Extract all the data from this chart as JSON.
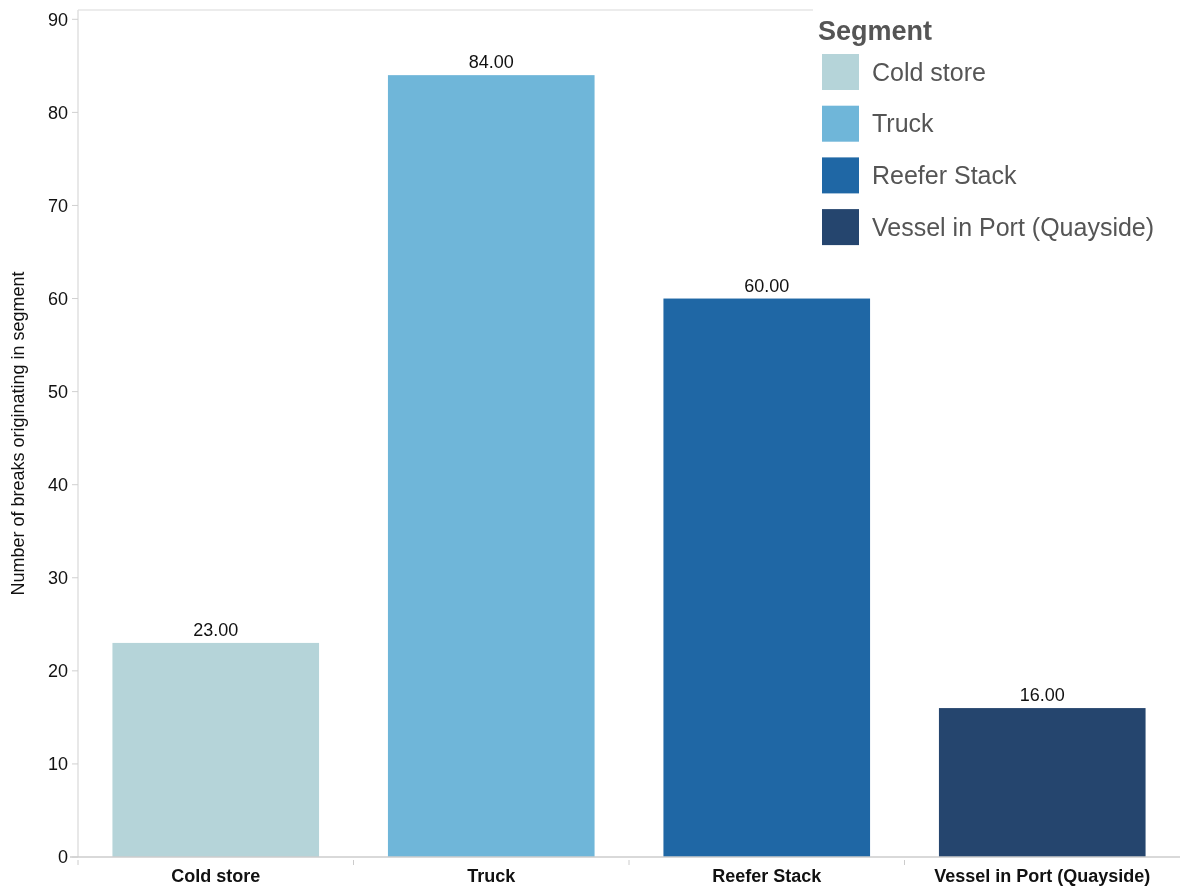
{
  "chart_data": {
    "type": "bar",
    "categories": [
      "Cold store",
      "Truck",
      "Reefer Stack",
      "Vessel in Port (Quayside)"
    ],
    "series": [
      {
        "name": "Cold store",
        "color": "#b5d4d9",
        "values": [
          23,
          null,
          null,
          null
        ],
        "value_labels": [
          "23.00",
          null,
          null,
          null
        ]
      },
      {
        "name": "Truck",
        "color": "#6fb6d9",
        "values": [
          null,
          84,
          null,
          null
        ],
        "value_labels": [
          null,
          "84.00",
          null,
          null
        ]
      },
      {
        "name": "Reefer Stack",
        "color": "#1f67a5",
        "values": [
          null,
          null,
          60,
          null
        ],
        "value_labels": [
          null,
          null,
          "60.00",
          null
        ]
      },
      {
        "name": "Vessel in Port (Quayside)",
        "color": "#25456e",
        "values": [
          null,
          null,
          null,
          16
        ],
        "value_labels": [
          null,
          null,
          null,
          "16.00"
        ]
      }
    ],
    "ylabel": "Number of breaks originating in segment",
    "ylim": [
      0,
      91
    ],
    "yticks": [
      0,
      10,
      20,
      30,
      40,
      50,
      60,
      70,
      80,
      90
    ],
    "legend": "top right",
    "legend_title": "Segment"
  }
}
